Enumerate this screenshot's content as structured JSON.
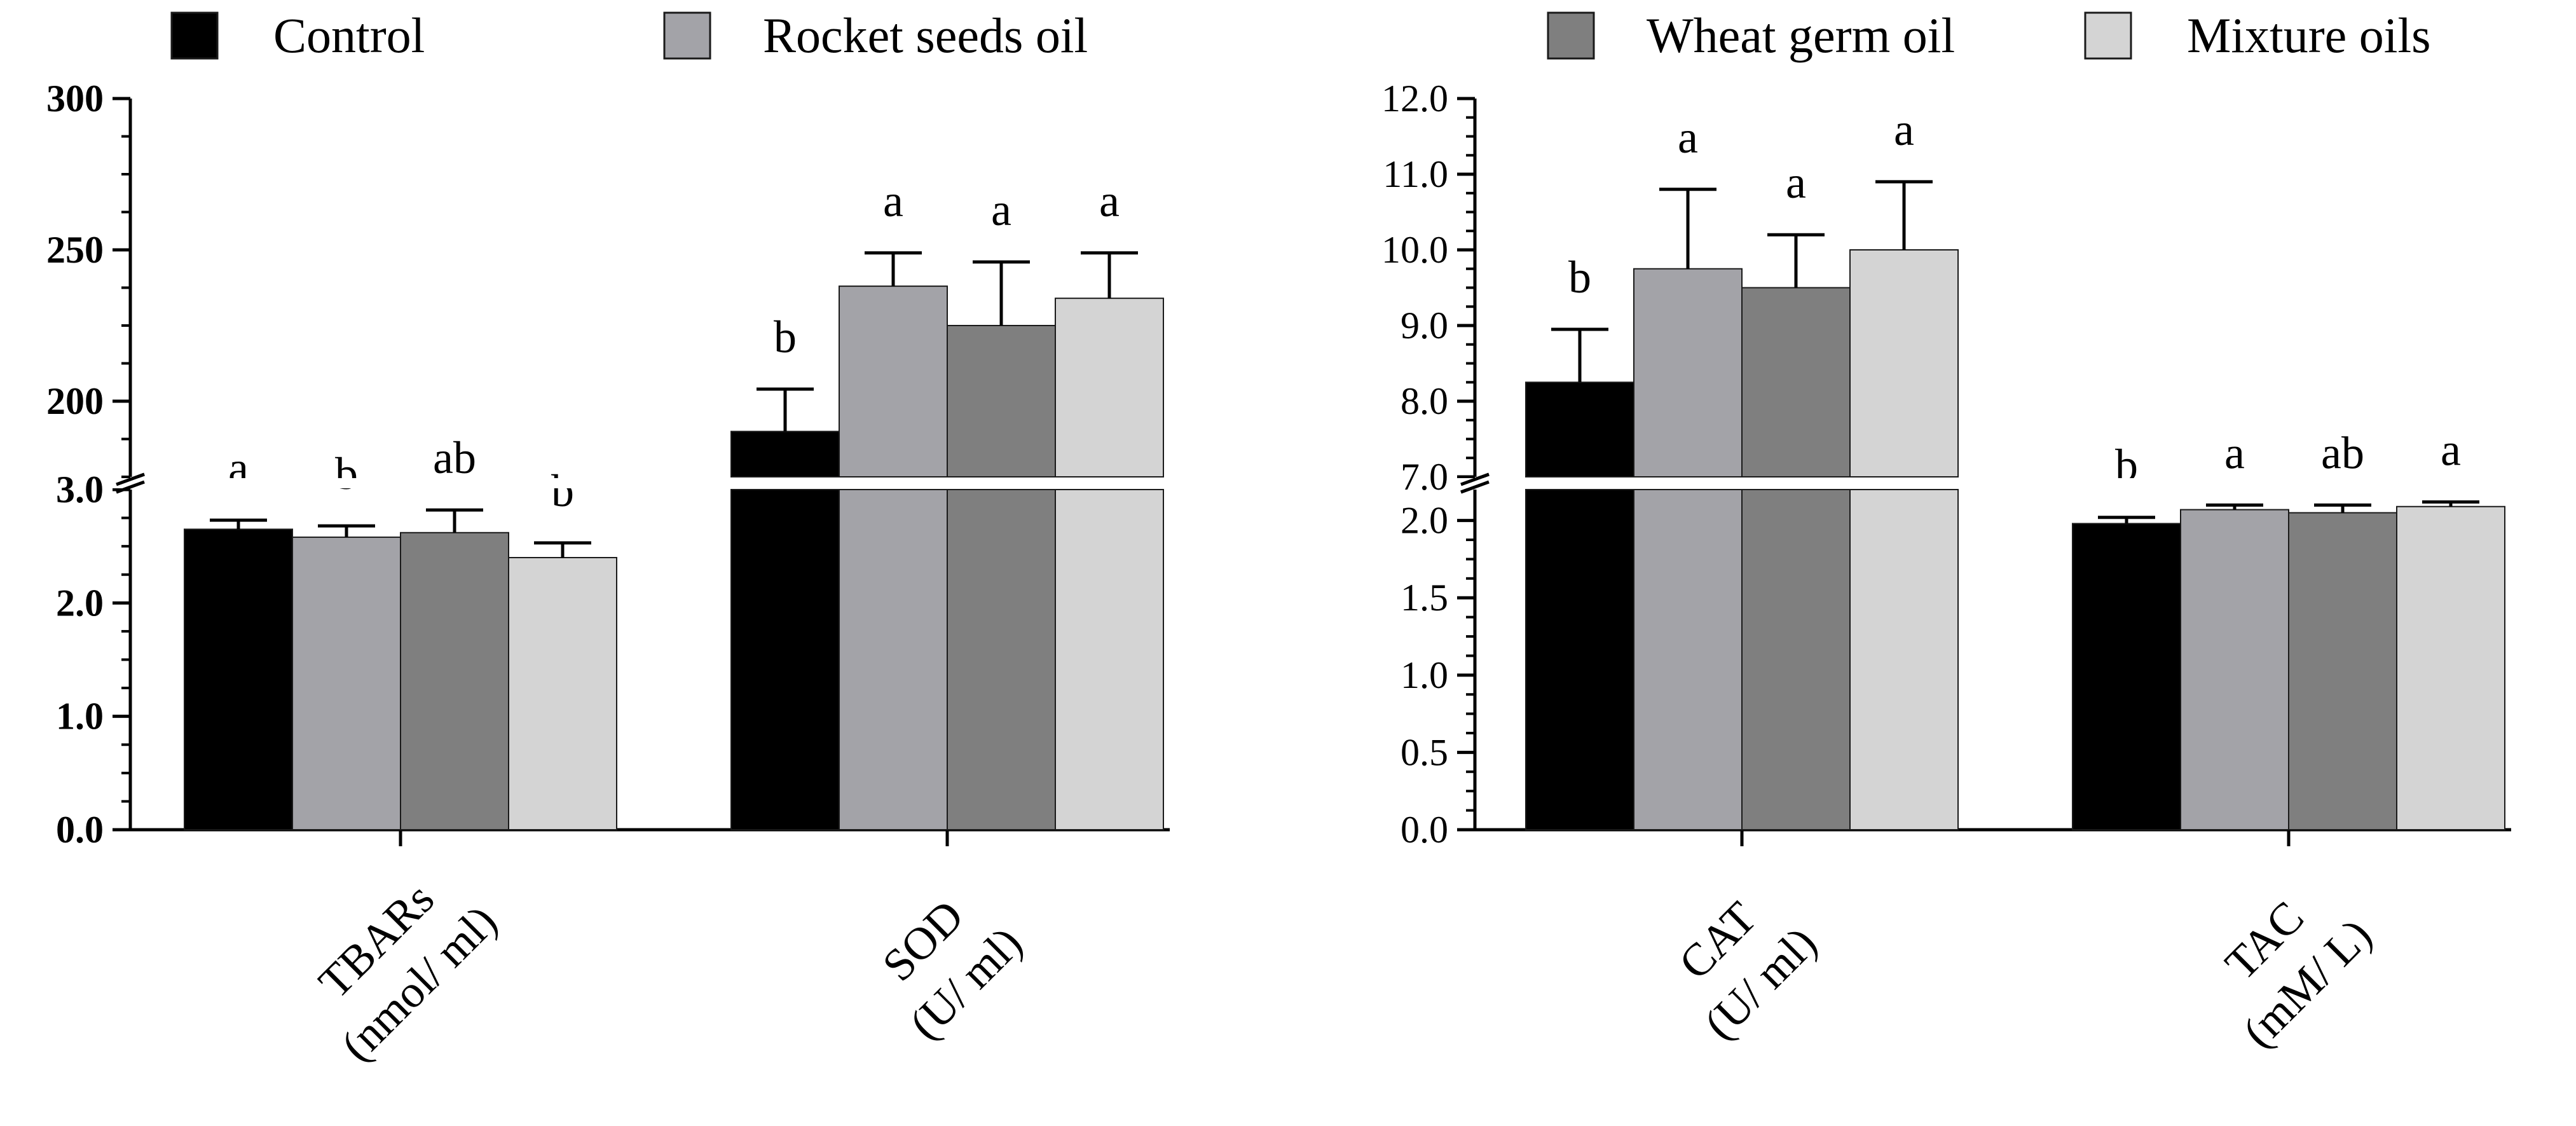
{
  "chart_data": {
    "type": "bar",
    "legend": [
      {
        "name": "Control",
        "color": "#000000"
      },
      {
        "name": "Rocket seeds oil",
        "color": "#a3a3a8"
      },
      {
        "name": "Wheat germ oil",
        "color": "#7f7f7f"
      },
      {
        "name": "Mixture oils",
        "color": "#d4d4d4"
      }
    ],
    "panels": [
      {
        "id": "left",
        "lower_axis": {
          "range": [
            0,
            3.0
          ],
          "ticks": [
            "0.0",
            "1.0",
            "2.0",
            "3.0"
          ]
        },
        "upper_axis": {
          "range": [
            175,
            300
          ],
          "ticks": [
            "200",
            "250",
            "300"
          ]
        },
        "groups": [
          {
            "label_line1": "TBARs",
            "label_line2": "(nmol/ ml)",
            "values": [
              2.65,
              2.58,
              2.62,
              2.4
            ],
            "errors": [
              0.08,
              0.1,
              0.2,
              0.13
            ],
            "sig": [
              "a",
              "b",
              "ab",
              "b"
            ]
          },
          {
            "label_line1": "SOD",
            "label_line2": "(U/ ml)",
            "values": [
              190,
              238,
              225,
              234
            ],
            "errors": [
              14,
              11,
              21,
              15
            ],
            "sig": [
              "b",
              "a",
              "a",
              "a"
            ]
          }
        ]
      },
      {
        "id": "right",
        "lower_axis": {
          "range": [
            0,
            2.2
          ],
          "ticks": [
            "0.0",
            "0.5",
            "1.0",
            "1.5",
            "2.0"
          ]
        },
        "upper_axis": {
          "range": [
            7.0,
            12.0
          ],
          "ticks": [
            "7.0",
            "8.0",
            "9.0",
            "10.0",
            "11.0",
            "12.0"
          ]
        },
        "groups": [
          {
            "label_line1": "CAT",
            "label_line2": "(U/ ml)",
            "values": [
              8.25,
              9.75,
              9.5,
              10.0
            ],
            "errors": [
              0.7,
              1.05,
              0.7,
              0.9
            ],
            "sig": [
              "b",
              "a",
              "a",
              "a"
            ]
          },
          {
            "label_line1": "TAC",
            "label_line2": "(mM/ L)",
            "values": [
              1.98,
              2.07,
              2.05,
              2.09
            ],
            "errors": [
              0.04,
              0.03,
              0.05,
              0.03
            ],
            "sig": [
              "b",
              "a",
              "ab",
              "a"
            ]
          }
        ]
      }
    ]
  }
}
